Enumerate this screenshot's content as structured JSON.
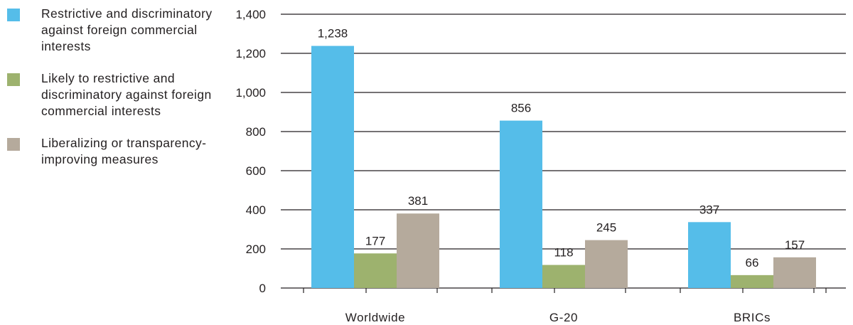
{
  "chart_data": {
    "type": "bar",
    "title": "",
    "xlabel": "",
    "ylabel": "",
    "categories": [
      "Worldwide",
      "G-20",
      "BRICs"
    ],
    "series": [
      {
        "name": "Restrictive and discriminatory against foreign commercial interests",
        "values": [
          1238,
          856,
          337
        ],
        "value_labels": [
          "1,238",
          "856",
          "337"
        ],
        "color": "#55bde9"
      },
      {
        "name": "Likely to restrictive and discriminatory against foreign commercial interests",
        "values": [
          177,
          118,
          66
        ],
        "value_labels": [
          "177",
          "118",
          "66"
        ],
        "color": "#9db26e"
      },
      {
        "name": "Liberalizing or transparency-improving measures",
        "values": [
          381,
          245,
          157
        ],
        "value_labels": [
          "381",
          "245",
          "157"
        ],
        "color": "#b5aa9c"
      }
    ],
    "ylim": [
      0,
      1400
    ],
    "yticks": [
      0,
      200,
      400,
      600,
      800,
      1000,
      1200,
      1400
    ],
    "ytick_labels": [
      "0",
      "200",
      "400",
      "600",
      "800",
      "1,000",
      "1,200",
      "1,400"
    ],
    "grid": true,
    "legend_position": "left"
  }
}
